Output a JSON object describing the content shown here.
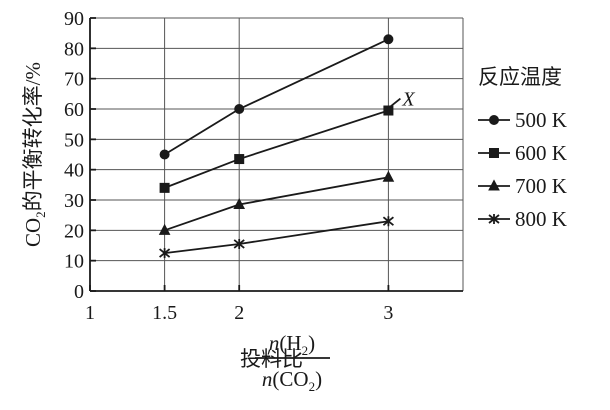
{
  "chart_data": {
    "type": "line",
    "ylabel_html": [
      "CO",
      "2",
      "的平衡转化率/%"
    ],
    "xlabel": {
      "prefix": "投料比",
      "numerator": [
        "n",
        "(H",
        "2",
        ")"
      ],
      "denominator": [
        "n",
        "(CO",
        "2",
        ")"
      ]
    },
    "x_ticks": [
      "1",
      "1.5",
      "2",
      "3"
    ],
    "y_ticks": [
      "0",
      "10",
      "20",
      "30",
      "40",
      "50",
      "60",
      "70",
      "80",
      "90"
    ],
    "xlim": [
      1,
      3.5
    ],
    "ylim": [
      0,
      90
    ],
    "grid": true,
    "legend": {
      "title": "反应温度",
      "placement": "right"
    },
    "x": [
      1.5,
      2,
      3
    ],
    "series": [
      {
        "name": "500 K",
        "marker": "circle",
        "values": [
          45,
          60,
          83
        ]
      },
      {
        "name": "600 K",
        "marker": "square",
        "values": [
          34,
          43.5,
          59.5
        ]
      },
      {
        "name": "700 K",
        "marker": "triangle",
        "values": [
          20,
          28.5,
          37.5
        ]
      },
      {
        "name": "800 K",
        "marker": "cross",
        "values": [
          12.5,
          15.5,
          23
        ]
      }
    ],
    "annotations": [
      {
        "text": "X",
        "series": "600 K",
        "anchor": "end"
      }
    ]
  }
}
